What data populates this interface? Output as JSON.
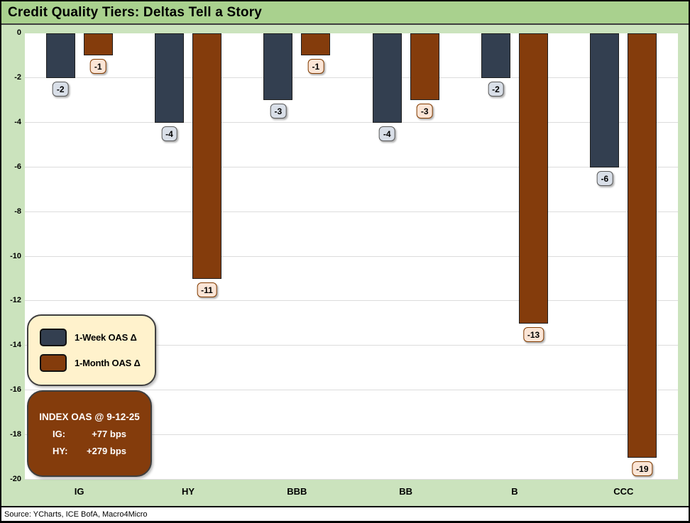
{
  "window": {
    "title": "Credit Quality Tiers: Deltas Tell a Story"
  },
  "chart_data": {
    "type": "bar",
    "title": "Credit Quality Tiers: Deltas Tell a Story",
    "categories": [
      "IG",
      "HY",
      "BBB",
      "BB",
      "B",
      "CCC"
    ],
    "series": [
      {
        "name": "1-Week OAS Δ",
        "values": [
          -2,
          -4,
          -3,
          -4,
          -2,
          -6
        ],
        "color": "#333F50",
        "label_bg": "#D9DFE8",
        "label_border": "#595959"
      },
      {
        "name": "1-Month OAS Δ",
        "values": [
          -1,
          -11,
          -1,
          -3,
          -13,
          -19
        ],
        "color": "#843C0C",
        "label_bg": "#FBE5D6",
        "label_border": "#833C00"
      }
    ],
    "xlabel": "",
    "ylabel": "",
    "ylim": [
      -20,
      0
    ],
    "yticks": [
      0,
      -2,
      -4,
      -6,
      -8,
      -10,
      -12,
      -14,
      -16,
      -18,
      -20
    ],
    "grid": "horizontal",
    "legend_position": "inside-left",
    "bar_labels": true
  },
  "annotation_box": {
    "title": "INDEX OAS @ 9-12-25",
    "rows": [
      {
        "label": "IG:",
        "value": "+77 bps"
      },
      {
        "label": "HY:",
        "value": "+279 bps"
      }
    ]
  },
  "footer": {
    "source": "Source: YCharts, ICE BofA, Macro4Micro"
  },
  "colors": {
    "title_bg": "#A9D18E",
    "chart_bg": "#CBE3BD",
    "plot_bg": "#FFFFFF",
    "gridline": "#DCDCDC",
    "separator": "#3F3F3F",
    "frame": "#000000",
    "week_bar": "#333F50",
    "month_bar": "#843C0C",
    "week_label_bg": "#D9DFE8",
    "month_label_bg": "#FBE5D6",
    "legend_bg": "#FFF2CC",
    "index_box_bg": "#843C0C"
  }
}
